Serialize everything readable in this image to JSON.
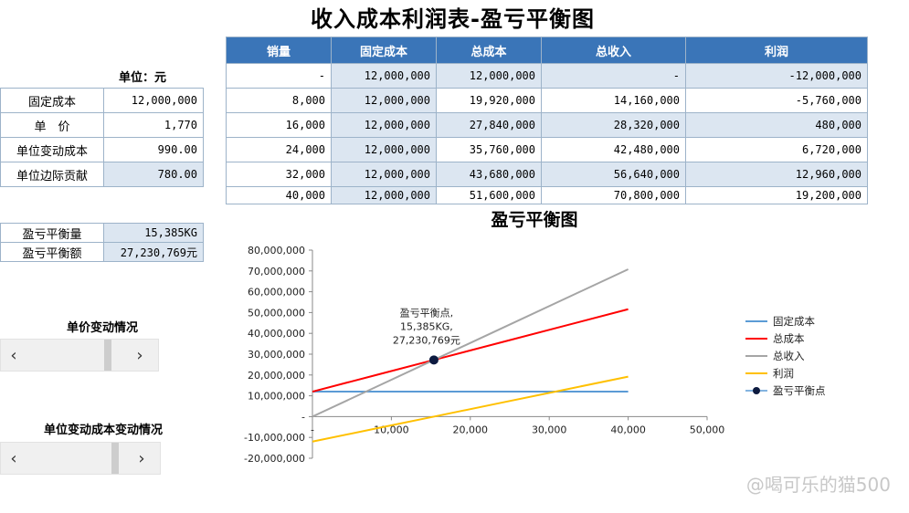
{
  "title": "收入成本利润表-盈亏平衡图",
  "params": {
    "unit_label": "单位：元",
    "rows": [
      {
        "label": "固定成本",
        "value": "12,000,000",
        "highlight": false
      },
      {
        "label": "单　价",
        "value": "1,770",
        "highlight": false
      },
      {
        "label": "单位变动成本",
        "value": "990.00",
        "highlight": false
      },
      {
        "label": "单位边际贡献",
        "value": "780.00",
        "highlight": true
      }
    ]
  },
  "breakeven": {
    "rows": [
      {
        "label": "盈亏平衡量",
        "value": "15,385KG"
      },
      {
        "label": "盈亏平衡额",
        "value": "27,230,769元"
      }
    ]
  },
  "table": {
    "headers": [
      "销量",
      "固定成本",
      "总成本",
      "总收入",
      "利润"
    ],
    "rows": [
      [
        "-",
        "12,000,000",
        "12,000,000",
        "-",
        "-12,000,000"
      ],
      [
        "8,000",
        "12,000,000",
        "19,920,000",
        "14,160,000",
        "-5,760,000"
      ],
      [
        "16,000",
        "12,000,000",
        "27,840,000",
        "28,320,000",
        "480,000"
      ],
      [
        "24,000",
        "12,000,000",
        "35,760,000",
        "42,480,000",
        "6,720,000"
      ],
      [
        "32,000",
        "12,000,000",
        "43,680,000",
        "56,640,000",
        "12,960,000"
      ],
      [
        "40,000",
        "12,000,000",
        "51,600,000",
        "70,800,000",
        "19,200,000"
      ]
    ]
  },
  "controls": {
    "price_title": "单价变动情况",
    "varcost_title": "单位变动成本变动情况",
    "left_arrow": "‹",
    "right_arrow": "›",
    "price_thumb_position": 0.77,
    "varcost_thumb_position": 0.82
  },
  "chart_data": {
    "type": "line",
    "title": "盈亏平衡图",
    "xlim": [
      0,
      50000
    ],
    "ylim": [
      -20000000,
      80000000
    ],
    "x_ticks": [
      "-",
      "10,000",
      "20,000",
      "30,000",
      "40,000",
      "50,000"
    ],
    "y_ticks": [
      "80,000,000",
      "70,000,000",
      "60,000,000",
      "50,000,000",
      "40,000,000",
      "30,000,000",
      "20,000,000",
      "10,000,000",
      "-",
      "-10,000,000",
      "-20,000,000"
    ],
    "x": [
      0,
      8000,
      16000,
      24000,
      32000,
      40000
    ],
    "series": [
      {
        "name": "固定成本",
        "color": "#5b9bd5",
        "values": [
          12000000,
          12000000,
          12000000,
          12000000,
          12000000,
          12000000
        ]
      },
      {
        "name": "总成本",
        "color": "#ff0000",
        "values": [
          12000000,
          19920000,
          27840000,
          35760000,
          43680000,
          51600000
        ]
      },
      {
        "name": "总收入",
        "color": "#a5a5a5",
        "values": [
          0,
          14160000,
          28320000,
          42480000,
          56640000,
          70800000
        ]
      },
      {
        "name": "利润",
        "color": "#ffc000",
        "values": [
          -12000000,
          -5760000,
          480000,
          6720000,
          12960000,
          19200000
        ]
      }
    ],
    "breakeven_point": {
      "name": "盈亏平衡点",
      "x": 15385,
      "y": 27230769,
      "color": "#0d1b40"
    },
    "annotation": [
      "盈亏平衡点,",
      "15,385KG,",
      "27,230,769元"
    ]
  },
  "watermark": "@喝可乐的猫500"
}
